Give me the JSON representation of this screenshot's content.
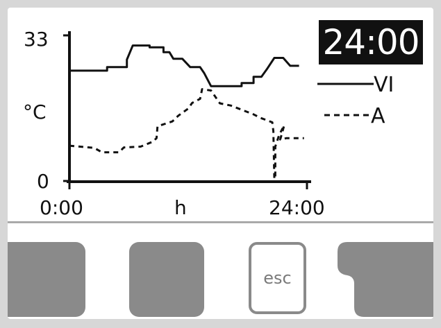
{
  "screen": {
    "time_display": "24:00"
  },
  "graph": {
    "y_axis": {
      "top_label": "33",
      "unit_label": "°C",
      "bottom_label": "0"
    },
    "x_axis": {
      "start_label": "0:00",
      "unit_label": "h",
      "end_label": "24:00"
    },
    "legend": [
      {
        "style": "solid",
        "label": "VI"
      },
      {
        "style": "dashed",
        "label": "A"
      }
    ],
    "colors": {
      "line": "#111111",
      "background": "#ffffff",
      "softkey": "#8a8a8a",
      "time_box": "#111111"
    }
  },
  "chart_data": {
    "type": "line",
    "title": "",
    "xlabel": "h",
    "ylabel": "°C",
    "xlim": [
      0,
      24
    ],
    "ylim": [
      0,
      33
    ],
    "grid": false,
    "legend_position": "right",
    "series": [
      {
        "name": "VI",
        "style": "solid",
        "points": [
          [
            0,
            25
          ],
          [
            3.8,
            25
          ],
          [
            3.8,
            25.8
          ],
          [
            5.8,
            25.8
          ],
          [
            5.8,
            27.5
          ],
          [
            6.4,
            30.7
          ],
          [
            8.1,
            30.7
          ],
          [
            8.1,
            30.3
          ],
          [
            9.5,
            30.3
          ],
          [
            9.5,
            29.2
          ],
          [
            10.1,
            29.2
          ],
          [
            10.5,
            27.7
          ],
          [
            11.4,
            27.7
          ],
          [
            12.2,
            25.8
          ],
          [
            13.2,
            25.8
          ],
          [
            13.6,
            24.5
          ],
          [
            14.3,
            21.5
          ],
          [
            17.4,
            21.5
          ],
          [
            17.4,
            22.2
          ],
          [
            18.6,
            22.2
          ],
          [
            18.6,
            23.6
          ],
          [
            19.4,
            23.6
          ],
          [
            20.0,
            25.5
          ],
          [
            20.7,
            27.9
          ],
          [
            21.6,
            27.9
          ],
          [
            22.3,
            26.1
          ],
          [
            23.2,
            26.1
          ]
        ]
      },
      {
        "name": "A",
        "style": "dashed",
        "points": [
          [
            0,
            8
          ],
          [
            2.5,
            7.5
          ],
          [
            3.3,
            6.5
          ],
          [
            5.0,
            6.5
          ],
          [
            5.5,
            7.6
          ],
          [
            7.2,
            7.8
          ],
          [
            8.4,
            8.9
          ],
          [
            8.8,
            9.7
          ],
          [
            8.9,
            12.4
          ],
          [
            10.4,
            13.5
          ],
          [
            11.0,
            14.8
          ],
          [
            12.0,
            16.4
          ],
          [
            12.4,
            17.7
          ],
          [
            13.2,
            18.6
          ],
          [
            13.4,
            20.8
          ],
          [
            14.3,
            20.5
          ],
          [
            15.2,
            17.6
          ],
          [
            16.3,
            17.1
          ],
          [
            18.6,
            15.1
          ],
          [
            19.3,
            14.3
          ],
          [
            20.5,
            13.3
          ],
          [
            20.6,
            11.3
          ],
          [
            20.7,
            0.5
          ],
          [
            20.8,
            0.5
          ],
          [
            20.8,
            7.8
          ],
          [
            21.2,
            10.5
          ],
          [
            21.7,
            12.6
          ],
          [
            21.3,
            9.4
          ],
          [
            21.9,
            9.7
          ],
          [
            23.7,
            9.7
          ]
        ]
      }
    ]
  },
  "softkeys": [
    {
      "label": ""
    },
    {
      "label": ""
    },
    {
      "label": "esc"
    },
    {
      "label": ""
    }
  ]
}
